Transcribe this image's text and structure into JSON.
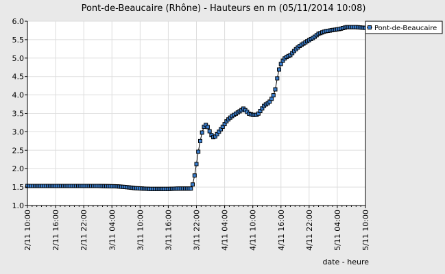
{
  "chart_data": {
    "type": "line",
    "title": "Pont-de-Beaucaire (Rhône) - Hauteurs en m (05/11/2014 10:08)",
    "xlabel": "date - heure",
    "ylabel": "",
    "ylim": [
      1.0,
      6.0
    ],
    "yticks": [
      "1.0",
      "1.5",
      "2.0",
      "2.5",
      "3.0",
      "3.5",
      "4.0",
      "4.5",
      "5.0",
      "5.5",
      "6.0"
    ],
    "xticks": [
      "2/11 10:00",
      "2/11 16:00",
      "2/11 22:00",
      "3/11 04:00",
      "3/11 10:00",
      "3/11 16:00",
      "3/11 22:00",
      "4/11 04:00",
      "4/11 10:00",
      "4/11 16:00",
      "4/11 22:00",
      "5/11 04:00",
      "5/11 10:00"
    ],
    "x_unit": "hours from 2/11 10:00",
    "xlim": [
      0,
      72
    ],
    "grid": true,
    "legend": "top-right",
    "colors": {
      "marker": "#3a7fd0",
      "marker_edge": "#000000",
      "line": "#000000",
      "plot_bg": "#ffffff",
      "page_bg": "#e9e9e9",
      "grid": "#dddddd"
    },
    "series": [
      {
        "name": "Pont-de-Beaucaire",
        "points": [
          [
            0,
            1.53
          ],
          [
            5,
            1.53
          ],
          [
            10,
            1.53
          ],
          [
            15,
            1.53
          ],
          [
            19,
            1.52
          ],
          [
            21,
            1.5
          ],
          [
            23,
            1.47
          ],
          [
            26,
            1.45
          ],
          [
            28,
            1.45
          ],
          [
            30,
            1.45
          ],
          [
            32,
            1.46
          ],
          [
            35,
            1.46
          ],
          [
            35.4,
            1.68
          ],
          [
            35.8,
            1.95
          ],
          [
            36.2,
            2.3
          ],
          [
            36.6,
            2.62
          ],
          [
            37.0,
            2.88
          ],
          [
            37.4,
            3.08
          ],
          [
            37.8,
            3.19
          ],
          [
            38.2,
            3.18
          ],
          [
            38.6,
            3.08
          ],
          [
            39.0,
            2.95
          ],
          [
            39.4,
            2.87
          ],
          [
            39.8,
            2.84
          ],
          [
            40.5,
            2.95
          ],
          [
            41.5,
            3.12
          ],
          [
            42.5,
            3.3
          ],
          [
            43.5,
            3.42
          ],
          [
            44.5,
            3.5
          ],
          [
            45.5,
            3.58
          ],
          [
            46.0,
            3.63
          ],
          [
            46.5,
            3.58
          ],
          [
            47.2,
            3.49
          ],
          [
            48.0,
            3.46
          ],
          [
            49.0,
            3.46
          ],
          [
            49.8,
            3.6
          ],
          [
            50.5,
            3.72
          ],
          [
            51.5,
            3.8
          ],
          [
            52.3,
            3.95
          ],
          [
            52.8,
            4.15
          ],
          [
            53.2,
            4.45
          ],
          [
            53.7,
            4.75
          ],
          [
            54.2,
            4.9
          ],
          [
            55.0,
            5.02
          ],
          [
            56.0,
            5.08
          ],
          [
            57.0,
            5.22
          ],
          [
            58.0,
            5.33
          ],
          [
            59.5,
            5.45
          ],
          [
            61.0,
            5.56
          ],
          [
            62.0,
            5.66
          ],
          [
            63.5,
            5.73
          ],
          [
            65.0,
            5.76
          ],
          [
            66.5,
            5.79
          ],
          [
            68.0,
            5.84
          ],
          [
            70.0,
            5.84
          ],
          [
            72.0,
            5.82
          ]
        ]
      }
    ]
  }
}
